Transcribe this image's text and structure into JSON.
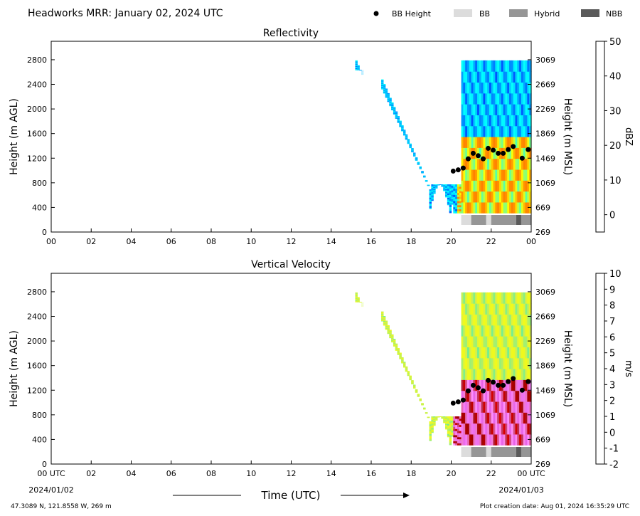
{
  "header": {
    "title": "Headworks MRR:  January 02, 2024 UTC",
    "legend": [
      {
        "label": "BB Height",
        "kind": "marker",
        "color": "#000000"
      },
      {
        "label": "BB",
        "kind": "patch",
        "color": "#dcdcdc"
      },
      {
        "label": "Hybrid",
        "kind": "patch",
        "color": "#969696"
      },
      {
        "label": "NBB",
        "kind": "patch",
        "color": "#5a5a5a"
      }
    ]
  },
  "footer": {
    "location": "47.3089 N, 121.8558 W, 269 m",
    "created": "Plot creation date: Aug 01, 2024 16:35:29 UTC"
  },
  "chart_data": [
    {
      "type": "heatmap",
      "title": "Reflectivity",
      "xlabel": "",
      "ylabel": "Height (m AGL)",
      "ylabel_right": "Height (m MSL)",
      "xlim": [
        0,
        24
      ],
      "ylim": [
        0,
        3100
      ],
      "x_ticks": [
        "00",
        "02",
        "04",
        "06",
        "08",
        "10",
        "12",
        "14",
        "16",
        "18",
        "20",
        "22",
        "00"
      ],
      "y_ticks": [
        0,
        400,
        800,
        1200,
        1600,
        2000,
        2400,
        2800
      ],
      "y_ticks_right": [
        "269",
        "669",
        "1069",
        "1469",
        "1869",
        "2269",
        "2669",
        "3069"
      ],
      "colorbar": {
        "label": "dBZ",
        "min": -5,
        "max": 50,
        "ticks": [
          0,
          10,
          20,
          30,
          40,
          50
        ],
        "colors": [
          "#00008f",
          "#0000ff",
          "#0080ff",
          "#00ffff",
          "#80ff80",
          "#ffff00",
          "#ff8000",
          "#ff0000",
          "#800000"
        ]
      }
    },
    {
      "type": "heatmap",
      "title": "Vertical Velocity",
      "xlabel": "Time (UTC)",
      "ylabel": "Height (m AGL)",
      "ylabel_right": "Height (m MSL)",
      "xlim": [
        0,
        24
      ],
      "ylim": [
        0,
        3100
      ],
      "x_ticks": [
        "00 UTC",
        "02",
        "04",
        "06",
        "08",
        "10",
        "12",
        "14",
        "16",
        "18",
        "20",
        "22",
        "00 UTC"
      ],
      "x_date_left": "2024/01/02",
      "x_date_right": "2024/01/03",
      "y_ticks": [
        0,
        400,
        800,
        1200,
        1600,
        2000,
        2400,
        2800
      ],
      "y_ticks_right": [
        "269",
        "669",
        "1069",
        "1469",
        "1869",
        "2269",
        "2669",
        "3069"
      ],
      "colorbar": {
        "label": "m/s",
        "min": -2,
        "max": 10,
        "ticks": [
          -2,
          -1,
          0,
          1,
          2,
          3,
          4,
          5,
          6,
          7,
          8,
          9,
          10
        ],
        "colors": [
          "#0044ff",
          "#00b0ff",
          "#00e0c0",
          "#7ff08a",
          "#d7f04a",
          "#ffff00",
          "#ffc000",
          "#ff6a00",
          "#e00000",
          "#a00000",
          "#e060a0",
          "#ff90ff",
          "#b000b0",
          "#800080"
        ]
      }
    }
  ],
  "bb_height": {
    "times": [
      20.1,
      20.35,
      20.6,
      20.85,
      21.1,
      21.35,
      21.6,
      21.85,
      22.1,
      22.35,
      22.6,
      22.85,
      23.1,
      23.55,
      23.85
    ],
    "heights_agl": [
      990,
      1010,
      1040,
      1190,
      1280,
      1240,
      1190,
      1360,
      1330,
      1280,
      1280,
      1340,
      1390,
      1200,
      1340
    ]
  },
  "bb_type_bar": [
    {
      "start": 20.5,
      "end": 21.0,
      "type": "BB"
    },
    {
      "start": 21.0,
      "end": 21.75,
      "type": "Hybrid"
    },
    {
      "start": 21.75,
      "end": 22.0,
      "type": "BB"
    },
    {
      "start": 22.0,
      "end": 23.25,
      "type": "Hybrid"
    },
    {
      "start": 23.25,
      "end": 23.5,
      "type": "NBB"
    },
    {
      "start": 23.5,
      "end": 24.0,
      "type": "Hybrid"
    }
  ]
}
